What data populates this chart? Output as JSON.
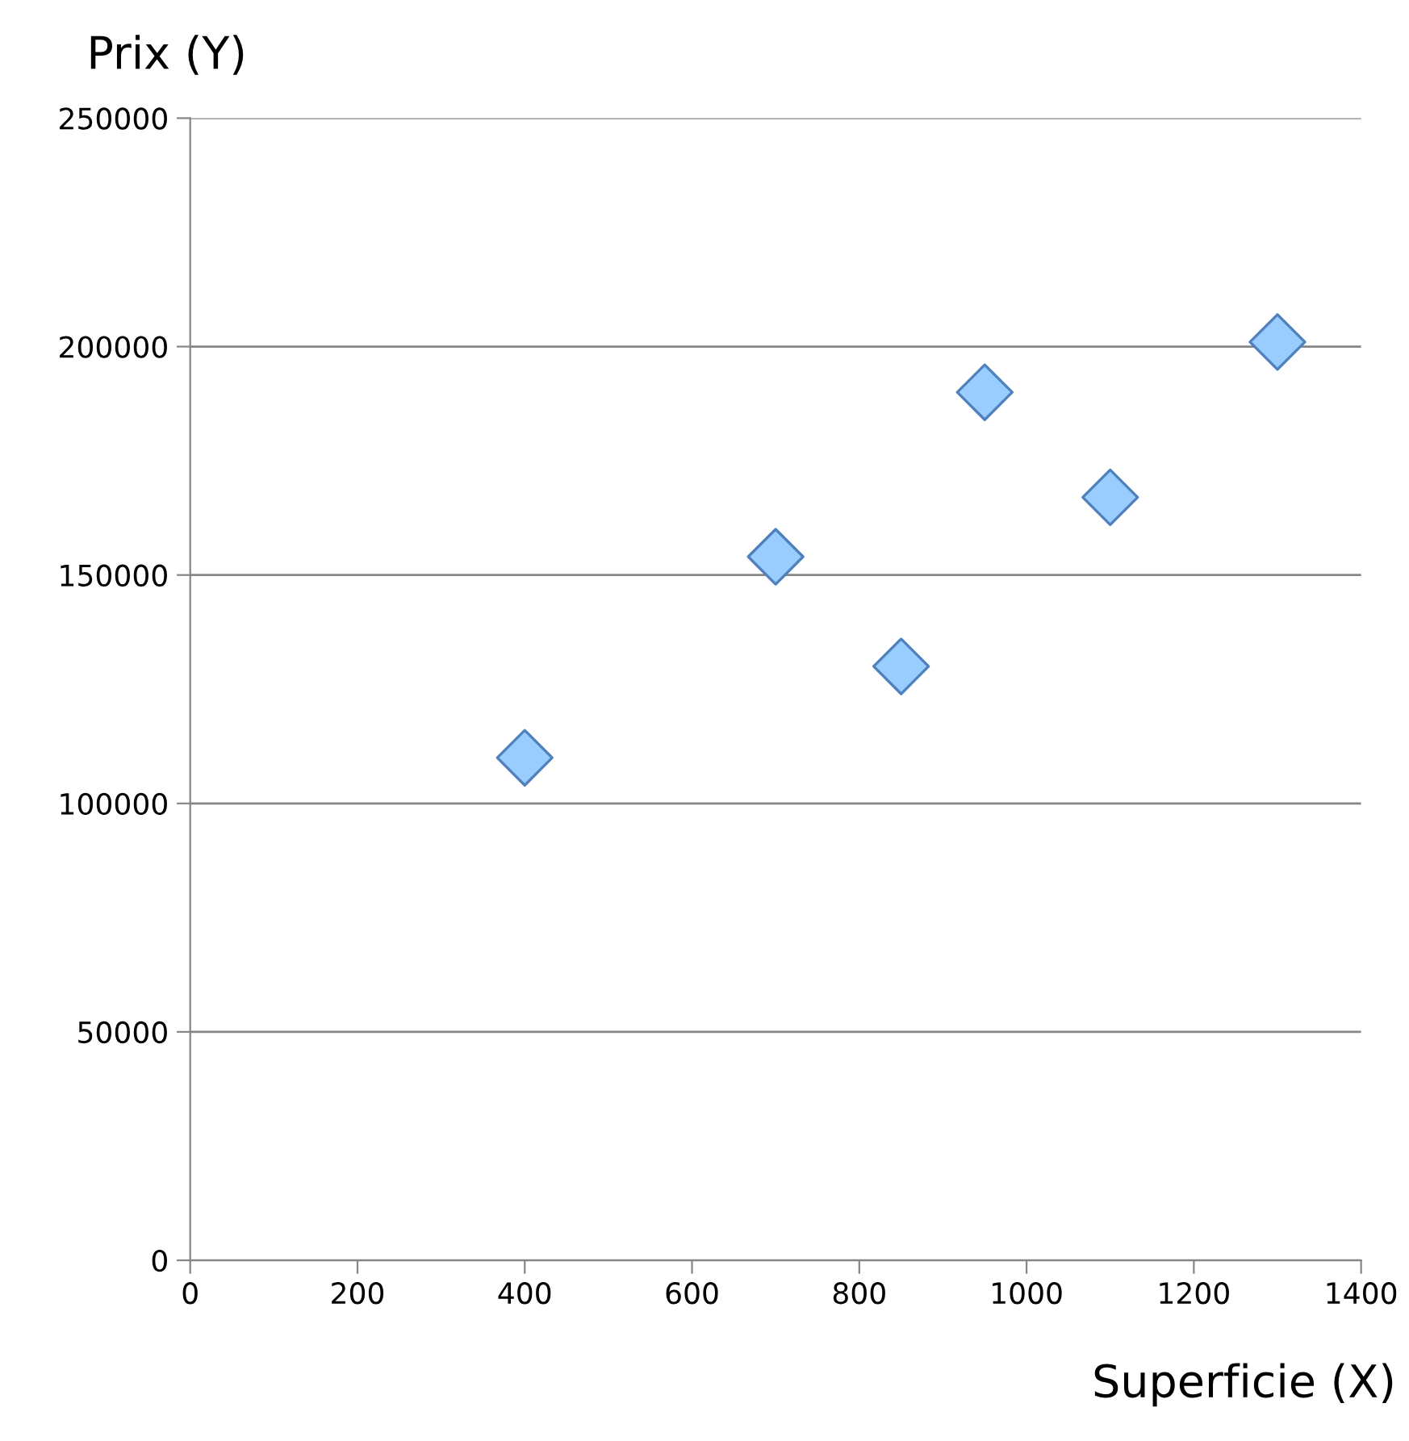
{
  "chart_data": {
    "type": "scatter",
    "xlabel": "Superficie (X)",
    "ylabel": "Prix (Y)",
    "x": [
      400,
      700,
      850,
      950,
      1100,
      1300
    ],
    "series": [
      {
        "color": "#99ccff",
        "values": [
          110000,
          154000,
          130000,
          190000,
          167000,
          201000
        ]
      }
    ],
    "xlim": [
      0,
      1400
    ],
    "xticks": [
      0,
      200,
      400,
      600,
      800,
      1000,
      1200,
      1400
    ],
    "ylim": [
      0,
      250000
    ],
    "yticks": [
      0,
      50000,
      100000,
      150000,
      200000,
      250000
    ],
    "grid": "y",
    "marker": "diamond",
    "legend": false
  }
}
